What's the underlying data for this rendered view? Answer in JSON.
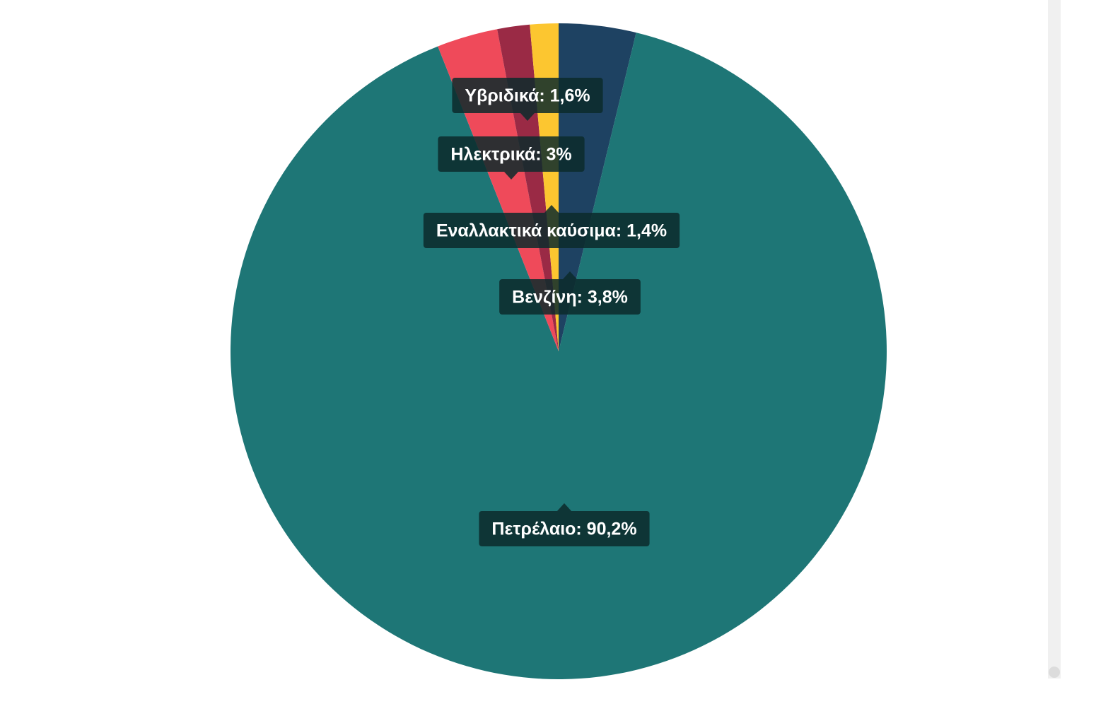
{
  "chart_data": {
    "type": "pie",
    "values": [
      3.8,
      90.2,
      3,
      1.6,
      1.4
    ],
    "value_labels": [
      "Βενζίνη: 3,8%",
      "Πετρέλαιο: 90,2%",
      "Ηλεκτρικά: 3%",
      "Υβριδικά: 1,6%",
      "Εναλλακτικά καύσιμα: 1,4%"
    ],
    "colors": [
      "#1e4262",
      "#1e7676",
      "#ef4a5a",
      "#9a2a45",
      "#fcc630"
    ]
  }
}
